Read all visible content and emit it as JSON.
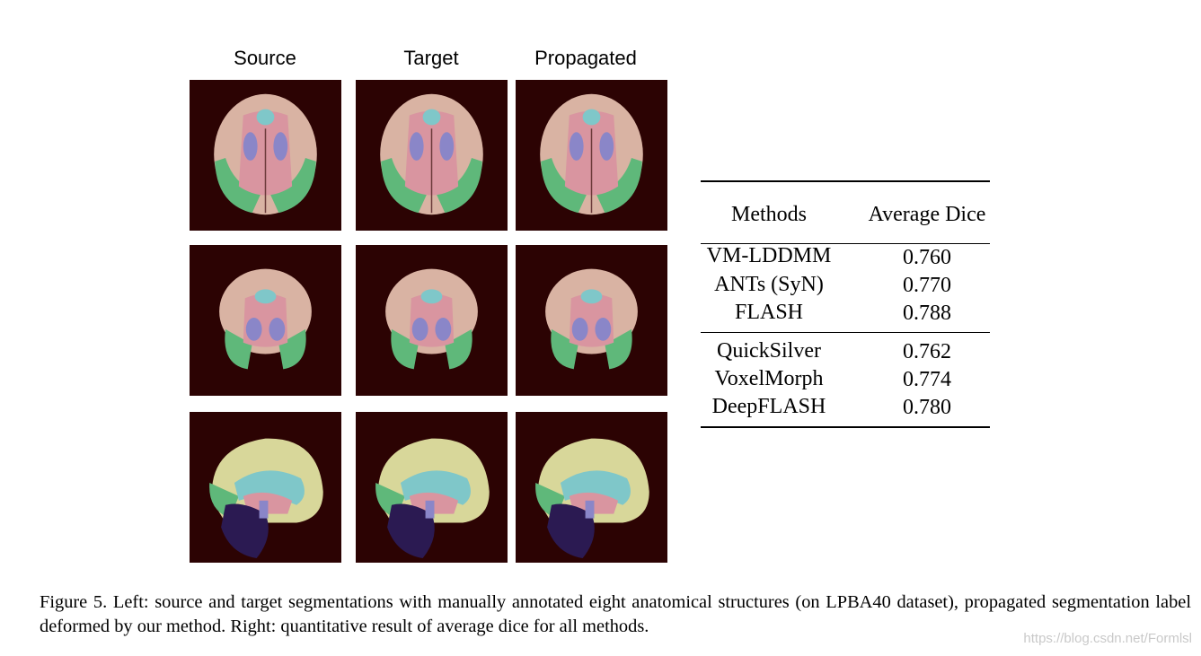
{
  "figure": {
    "columns": [
      "Source",
      "Target",
      "Propagated"
    ],
    "rows": [
      "axial",
      "coronal",
      "sagittal"
    ],
    "colors": {
      "background": "#2c0303",
      "cortex": "#d9b3a3",
      "pink": "#d995a0",
      "green": "#5fb87a",
      "cyan": "#7fc7c9",
      "blue": "#8a86c8",
      "purple": "#2b1a52",
      "yellow": "#d8d79a"
    }
  },
  "table": {
    "headers": [
      "Methods",
      "Average Dice"
    ],
    "group1": [
      {
        "method": "VM-LDDMM",
        "dice": "0.760"
      },
      {
        "method": "ANTs (SyN)",
        "dice": "0.770"
      },
      {
        "method": "FLASH",
        "dice": "0.788"
      }
    ],
    "group2": [
      {
        "method": "QuickSilver",
        "dice": "0.762"
      },
      {
        "method": "VoxelMorph",
        "dice": "0.774"
      },
      {
        "method": "DeepFLASH",
        "dice": "0.780"
      }
    ]
  },
  "caption": "Figure 5. Left: source and target segmentations with manually annotated eight anatomical structures (on LPBA40 dataset), propagated segmentation label deformed by our method. Right: quantitative result of average dice for all methods.",
  "watermark": "https://blog.csdn.net/Formlsl"
}
